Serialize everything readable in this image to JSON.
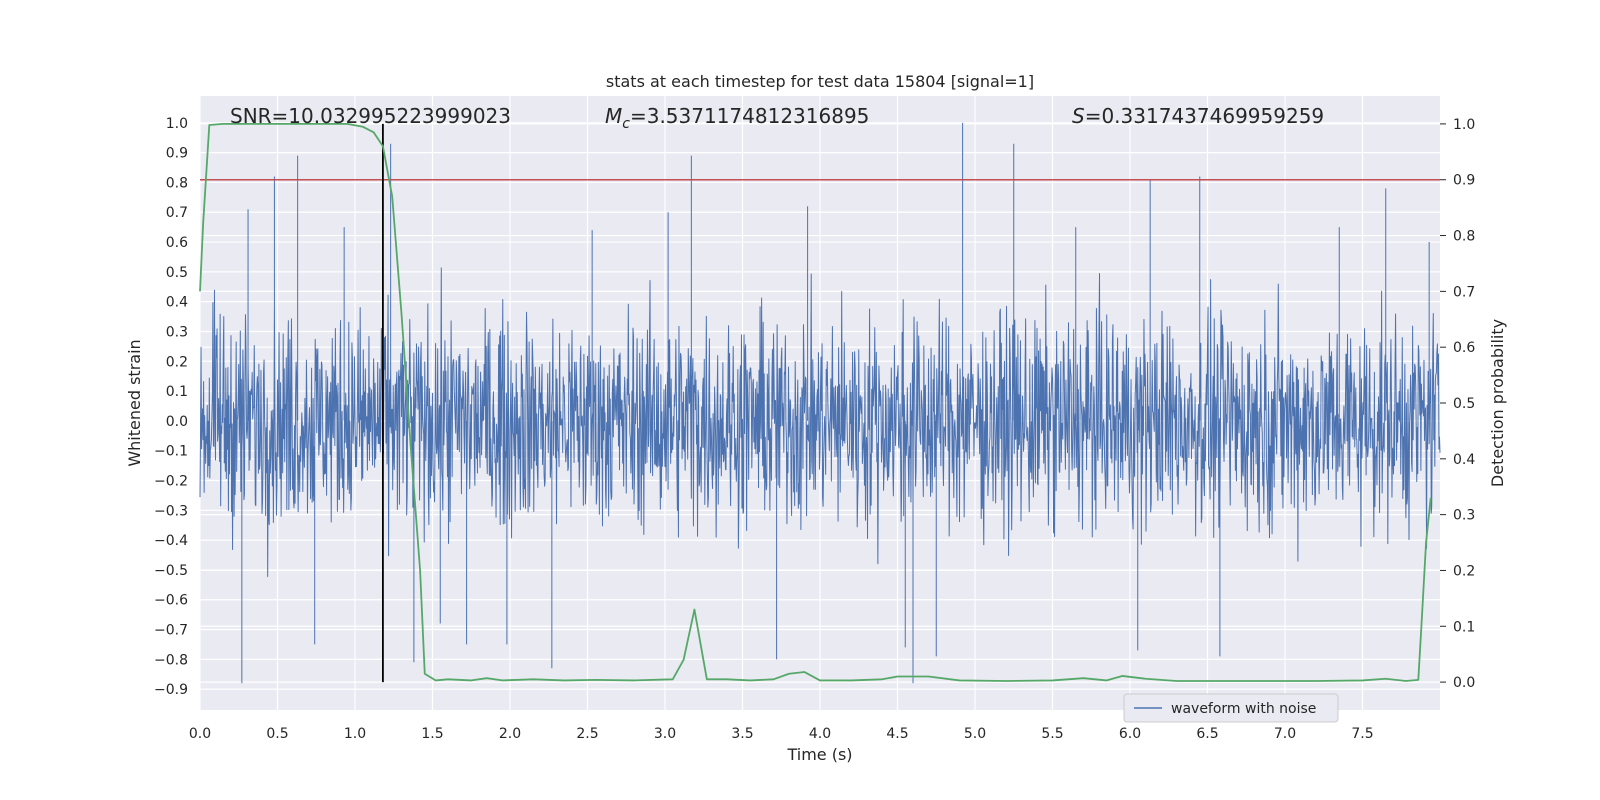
{
  "chart_data": {
    "type": "line",
    "title": "stats at each timestep for test data 15804 [signal=1]",
    "xlabel": "Time (s)",
    "ylabel": "Whitened strain",
    "y2label": "Detection probability",
    "xlim": [
      0.0,
      8.0
    ],
    "ylim": [
      -0.97,
      1.09
    ],
    "y2lim": [
      -0.05,
      1.05
    ],
    "x_ticks": [
      0.0,
      0.5,
      1.0,
      1.5,
      2.0,
      2.5,
      3.0,
      3.5,
      4.0,
      4.5,
      5.0,
      5.5,
      6.0,
      6.5,
      7.0,
      7.5
    ],
    "x_tick_labels": [
      "0.0",
      "0.5",
      "1.0",
      "1.5",
      "2.0",
      "2.5",
      "3.0",
      "3.5",
      "4.0",
      "4.5",
      "5.0",
      "5.5",
      "6.0",
      "6.5",
      "7.0",
      "7.5"
    ],
    "y_ticks": [
      1.0,
      0.9,
      0.8,
      0.7,
      0.6,
      0.5,
      0.4,
      0.3,
      0.2,
      0.1,
      0.0,
      -0.1,
      -0.2,
      -0.3,
      -0.4,
      -0.5,
      -0.6,
      -0.7,
      -0.8,
      -0.9
    ],
    "y_tick_labels": [
      "1.0",
      "0.9",
      "0.8",
      "0.7",
      "0.6",
      "0.5",
      "0.4",
      "0.3",
      "0.2",
      "0.1",
      "0.0",
      "−0.1",
      "−0.2",
      "−0.3",
      "−0.4",
      "−0.5",
      "−0.6",
      "−0.7",
      "−0.8",
      "−0.9"
    ],
    "y2_ticks": [
      1.0,
      0.9,
      0.8,
      0.7,
      0.6,
      0.5,
      0.4,
      0.3,
      0.2,
      0.1,
      0.0
    ],
    "y2_tick_labels": [
      "1.0",
      "0.9",
      "0.8",
      "0.7",
      "0.6",
      "0.5",
      "0.4",
      "0.3",
      "0.2",
      "0.1",
      "0.0"
    ],
    "grid": true,
    "legend": {
      "entries": [
        "waveform with noise"
      ],
      "placement": "lower-right"
    },
    "annotations": {
      "snr": "SNR=10.032995223999023",
      "mc_symbol": "M",
      "mc_sub": "c",
      "mc_value": "=3.5371174812316895",
      "s_symbol": "S",
      "s_value": "=0.3317437469959259"
    },
    "vertical_marker_x": 1.18,
    "threshold_probability": 0.9,
    "waveform": {
      "name": "waveform with noise",
      "color": "#4c72b0",
      "x_range": [
        0.0,
        8.0
      ],
      "envelope_typical": [
        -0.45,
        0.45
      ],
      "peaks": [
        [
          0.27,
          -0.88
        ],
        [
          0.31,
          0.71
        ],
        [
          0.48,
          0.82
        ],
        [
          0.63,
          0.89
        ],
        [
          0.74,
          -0.75
        ],
        [
          0.93,
          0.65
        ],
        [
          1.18,
          0.93
        ],
        [
          1.23,
          0.93
        ],
        [
          1.38,
          -0.81
        ],
        [
          1.55,
          -0.68
        ],
        [
          1.72,
          -0.75
        ],
        [
          1.98,
          -0.75
        ],
        [
          2.27,
          -0.83
        ],
        [
          2.53,
          0.64
        ],
        [
          3.02,
          0.7
        ],
        [
          3.17,
          0.89
        ],
        [
          3.72,
          -0.8
        ],
        [
          3.92,
          0.72
        ],
        [
          4.55,
          -0.76
        ],
        [
          4.6,
          -0.88
        ],
        [
          4.75,
          -0.79
        ],
        [
          4.92,
          1.0
        ],
        [
          5.25,
          0.93
        ],
        [
          5.65,
          0.65
        ],
        [
          6.05,
          -0.77
        ],
        [
          6.13,
          0.81
        ],
        [
          6.45,
          0.82
        ],
        [
          6.58,
          -0.79
        ],
        [
          7.35,
          0.65
        ],
        [
          7.65,
          0.78
        ],
        [
          7.93,
          0.6
        ]
      ]
    },
    "probability": {
      "color": "#55a868",
      "points": [
        [
          0.0,
          0.7
        ],
        [
          0.02,
          0.82
        ],
        [
          0.06,
          0.998
        ],
        [
          0.15,
          1.0
        ],
        [
          0.95,
          1.0
        ],
        [
          1.05,
          0.995
        ],
        [
          1.12,
          0.985
        ],
        [
          1.18,
          0.96
        ],
        [
          1.24,
          0.87
        ],
        [
          1.3,
          0.66
        ],
        [
          1.36,
          0.42
        ],
        [
          1.42,
          0.2
        ],
        [
          1.45,
          0.015
        ],
        [
          1.52,
          0.003
        ],
        [
          1.6,
          0.005
        ],
        [
          1.75,
          0.003
        ],
        [
          1.85,
          0.007
        ],
        [
          1.95,
          0.003
        ],
        [
          2.15,
          0.005
        ],
        [
          2.35,
          0.003
        ],
        [
          2.55,
          0.004
        ],
        [
          2.8,
          0.003
        ],
        [
          3.05,
          0.005
        ],
        [
          3.12,
          0.04
        ],
        [
          3.19,
          0.13
        ],
        [
          3.27,
          0.005
        ],
        [
          3.4,
          0.005
        ],
        [
          3.55,
          0.003
        ],
        [
          3.7,
          0.005
        ],
        [
          3.8,
          0.015
        ],
        [
          3.9,
          0.018
        ],
        [
          4.0,
          0.003
        ],
        [
          4.2,
          0.003
        ],
        [
          4.4,
          0.005
        ],
        [
          4.5,
          0.01
        ],
        [
          4.6,
          0.01
        ],
        [
          4.7,
          0.01
        ],
        [
          4.9,
          0.003
        ],
        [
          5.2,
          0.002
        ],
        [
          5.5,
          0.003
        ],
        [
          5.7,
          0.007
        ],
        [
          5.85,
          0.003
        ],
        [
          5.95,
          0.011
        ],
        [
          6.1,
          0.006
        ],
        [
          6.3,
          0.002
        ],
        [
          6.8,
          0.002
        ],
        [
          7.2,
          0.002
        ],
        [
          7.5,
          0.003
        ],
        [
          7.65,
          0.006
        ],
        [
          7.78,
          0.002
        ],
        [
          7.86,
          0.004
        ],
        [
          7.88,
          0.1
        ],
        [
          7.91,
          0.25
        ],
        [
          7.94,
          0.33
        ]
      ]
    }
  }
}
